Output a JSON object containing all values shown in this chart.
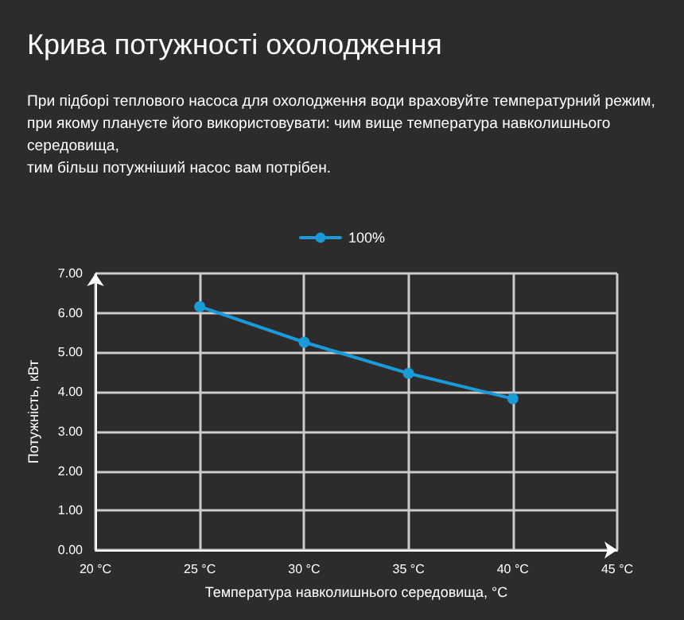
{
  "chart_data": {
    "type": "line",
    "title": "Крива потужності охолодження",
    "subtitle": "При підборі теплового насоса для охолодження води враховуйте температурний режим,\nпри якому плануєте його використовувати: чим вище температура навколишнього\nсередовища,\nтим більш потужніший насос вам потрібен.",
    "xlabel": "Температура навколишнього середовища, °C",
    "ylabel": "Потужність, кВт",
    "x": [
      25,
      30,
      35,
      40
    ],
    "series": [
      {
        "name": "100%",
        "color": "#1a9ad6",
        "values": [
          6.16,
          5.26,
          4.47,
          3.83
        ]
      }
    ],
    "xlim": [
      20,
      45
    ],
    "xticks": [
      {
        "value": 20,
        "label": "20 °C"
      },
      {
        "value": 25,
        "label": "25 °C"
      },
      {
        "value": 30,
        "label": "30 °C"
      },
      {
        "value": 35,
        "label": "35 °C"
      },
      {
        "value": 40,
        "label": "40 °C"
      },
      {
        "value": 45,
        "label": "45 °C"
      }
    ],
    "ylim": [
      0,
      7
    ],
    "yticks": [
      {
        "value": 0,
        "label": "0.00"
      },
      {
        "value": 1,
        "label": "1.00"
      },
      {
        "value": 2,
        "label": "2.00"
      },
      {
        "value": 3,
        "label": "3.00"
      },
      {
        "value": 4,
        "label": "4.00"
      },
      {
        "value": 5,
        "label": "5.00"
      },
      {
        "value": 6,
        "label": "6.00"
      },
      {
        "value": 7,
        "label": "7.00"
      }
    ],
    "grid": true,
    "legend": "top",
    "marker": "circle",
    "line_style": "solid"
  }
}
